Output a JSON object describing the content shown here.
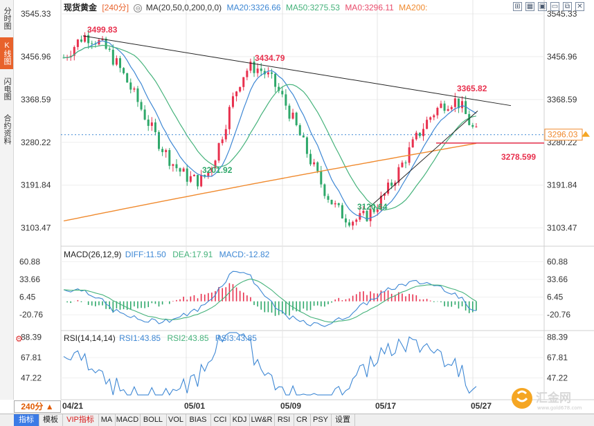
{
  "sidebar": {
    "tabs": [
      {
        "label": "分时图",
        "active": false
      },
      {
        "label": "K线图",
        "active": true
      },
      {
        "label": "闪电图",
        "active": false
      },
      {
        "label": "合约资料",
        "active": false
      }
    ]
  },
  "header": {
    "symbol": "现货黄金",
    "period": "[240分]",
    "ma_params": "MA(20,50,0,200,0,0)",
    "ma20": "MA20:3326.66",
    "ma50": "MA50:3275.53",
    "ma0": "MA0:3296.11",
    "ma200": "MA200:"
  },
  "toolbar_icons": [
    "expand-icon",
    "grid-icon",
    "settings-icon",
    "minimize-icon",
    "restore-icon",
    "close-icon"
  ],
  "macd_header": {
    "title": "MACD(26,12,9)",
    "diff": "DIFF:11.50",
    "dea": "DEA:17.91",
    "macd": "MACD:-12.82"
  },
  "rsi_header": {
    "title": "RSI(14,14,14)",
    "rsi1": "RSI1:43.85",
    "rsi2": "RSI2:43.85",
    "rsi3": "RSI3:43.85"
  },
  "period_button": "240分 ▲",
  "bottom_tabs": [
    "指标",
    "模板",
    "VIP指标",
    "MA",
    "MACD",
    "BOLL",
    "VOL",
    "BIAS",
    "CCI",
    "KDJ",
    "LW&R",
    "RSI",
    "CR",
    "PSY",
    "设置"
  ],
  "logo_text": "汇金网",
  "logo_sub": "www.gold678.com",
  "colors": {
    "up": "#e8314e",
    "down": "#2ea86a",
    "ma20": "#3d87d4",
    "ma50": "#44b27a",
    "ma0": "#e84a6a",
    "ma200": "#f08a2e",
    "accent": "#e8622b"
  },
  "chart_data": [
    {
      "type": "candlestick",
      "title": "现货黄金 [240分]",
      "y_ticks": [
        "3545.33",
        "3456.96",
        "3368.59",
        "3280.22",
        "3191.84",
        "3103.47"
      ],
      "ylim": [
        3083.0,
        3545.33
      ],
      "x_labels": [
        "04/21",
        "05/01",
        "05/09",
        "05/17",
        "05/27"
      ],
      "annotations": [
        {
          "text": "3499.83",
          "type": "high"
        },
        {
          "text": "3434.79",
          "type": "high"
        },
        {
          "text": "3365.82",
          "type": "high"
        },
        {
          "text": "3201.92",
          "type": "low"
        },
        {
          "text": "3120.64",
          "type": "low"
        }
      ],
      "current_price": "3296.03",
      "support_line_label": "3278.599",
      "key_points": [
        {
          "x": "04/22",
          "y": 3499.83
        },
        {
          "x": "04/30",
          "y": 3201.92
        },
        {
          "x": "05/06",
          "y": 3434.79
        },
        {
          "x": "05/15",
          "y": 3120.64
        },
        {
          "x": "05/23",
          "y": 3365.82
        },
        {
          "x": "05/27",
          "y": 3296.03
        }
      ]
    },
    {
      "type": "macd",
      "y_ticks": [
        "60.88",
        "33.66",
        "6.45",
        "-20.76"
      ],
      "ylim": [
        -45,
        72
      ]
    },
    {
      "type": "rsi",
      "y_ticks": [
        "88.39",
        "67.81",
        "47.22"
      ],
      "ylim": [
        28,
        95
      ]
    }
  ]
}
